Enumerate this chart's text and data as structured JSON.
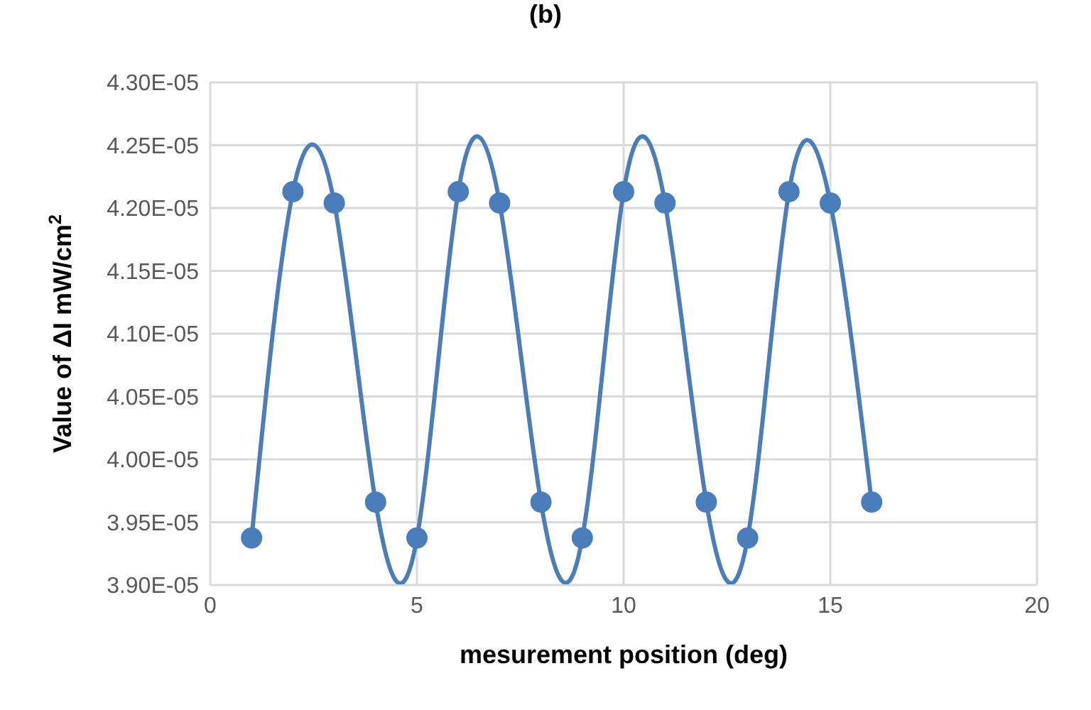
{
  "chart_data": {
    "type": "line",
    "title": "(b)",
    "xlabel": "mesurement position (deg)",
    "ylabel": "Value of ΔI mW/cm$^{2}$",
    "x": [
      1,
      2,
      3,
      4,
      5,
      6,
      7,
      8,
      9,
      10,
      11,
      12,
      13,
      14,
      15,
      16
    ],
    "series": [
      {
        "color": "#4a7ebb",
        "values": [
          3.9375e-05,
          4.213e-05,
          4.204e-05,
          3.966e-05,
          3.9375e-05,
          4.213e-05,
          4.204e-05,
          3.966e-05,
          3.9375e-05,
          4.213e-05,
          4.204e-05,
          3.966e-05,
          3.9375e-05,
          4.213e-05,
          4.204e-05,
          3.966e-05
        ]
      }
    ],
    "xlim": [
      0,
      20
    ],
    "xticks": [
      0,
      5,
      10,
      15,
      20
    ],
    "ylim": [
      3.9e-05,
      4.3e-05
    ],
    "yticks": [
      {
        "value": 3.9e-05,
        "label": "3.90E-05"
      },
      {
        "value": 3.95e-05,
        "label": "3.95E-05"
      },
      {
        "value": 4e-05,
        "label": "4.00E-05"
      },
      {
        "value": 4.05e-05,
        "label": "4.05E-05"
      },
      {
        "value": 4.1e-05,
        "label": "4.10E-05"
      },
      {
        "value": 4.15e-05,
        "label": "4.15E-05"
      },
      {
        "value": 4.2e-05,
        "label": "4.20E-05"
      },
      {
        "value": 4.25e-05,
        "label": "4.25E-05"
      },
      {
        "value": 4.3e-05,
        "label": "4.30E-05"
      }
    ],
    "grid": true,
    "marker": "circle",
    "legend": false
  }
}
